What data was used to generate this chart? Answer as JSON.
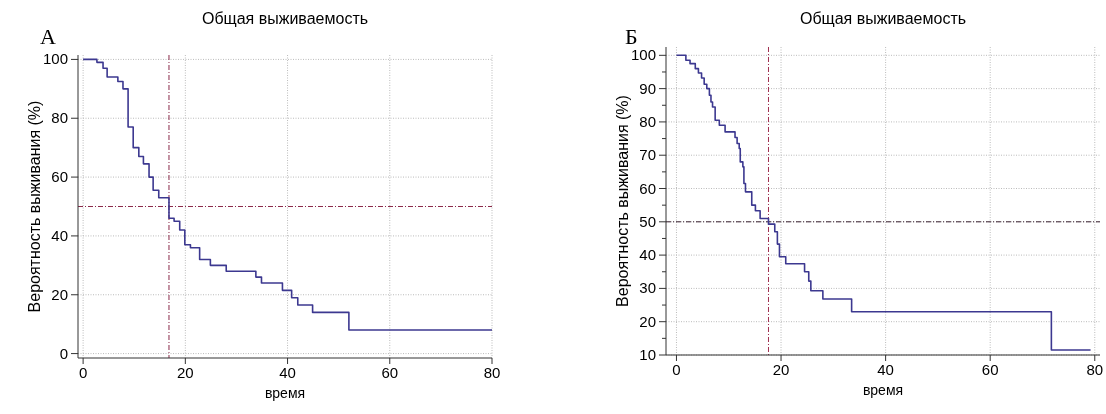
{
  "chart_data": [
    {
      "type": "step",
      "title": "Общая выживаемость",
      "xlabel": "время",
      "ylabel": "Вероятность выживания (%)",
      "annotations": [
        "А"
      ],
      "xlim": [
        -1,
        80
      ],
      "ylim": [
        -1.5,
        101.5
      ],
      "xticks": [
        0,
        20,
        40,
        60,
        80
      ],
      "yticks": [
        0,
        20,
        40,
        60,
        80,
        100
      ],
      "grid": true,
      "line_style": "solid",
      "ref_lines": [
        {
          "axis": "x",
          "value": 16.8,
          "color": "#8b2a4a",
          "line_style": "dashed"
        },
        {
          "axis": "y",
          "value": 50,
          "color": "#8b2a4a",
          "line_style": "dashed"
        }
      ],
      "series": [
        {
          "color": "#3c3890",
          "x": [
            0,
            2.7,
            3.9,
            4.7,
            6.8,
            7.8,
            8.8,
            9.8,
            10.9,
            11.8,
            12.9,
            13.7,
            14.8,
            16.8,
            17.8,
            18.9,
            19.9,
            21,
            22.8,
            24.9,
            28,
            33.8,
            34.9,
            39,
            40.8,
            42,
            44.9,
            52,
            80
          ],
          "values": [
            100,
            99,
            97,
            94,
            92.5,
            90,
            77,
            70,
            67,
            64.5,
            60,
            55.5,
            53,
            46,
            45,
            42,
            37,
            36,
            32,
            30,
            28,
            26,
            24,
            21.5,
            19,
            16.5,
            14,
            8,
            8
          ]
        }
      ]
    },
    {
      "type": "step",
      "title": "Общая выживаемость",
      "xlabel": "время",
      "ylabel": "Вероятность выживания (%)",
      "annotations": [
        "Б"
      ],
      "xlim": [
        -2,
        81
      ],
      "ylim": [
        10,
        102.5
      ],
      "xticks": [
        0,
        20,
        40,
        60,
        80
      ],
      "yticks": [
        10,
        {
          "value": 15,
          "label": null
        },
        20,
        {
          "value": 25,
          "label": null
        },
        30,
        {
          "value": 35,
          "label": null
        },
        40,
        {
          "value": 45,
          "label": null
        },
        50,
        {
          "value": 55,
          "label": null
        },
        60,
        {
          "value": 65,
          "label": null
        },
        70,
        {
          "value": 75,
          "label": null
        },
        80,
        {
          "value": 85,
          "label": null
        },
        90,
        {
          "value": 95,
          "label": null
        },
        100
      ],
      "grid": true,
      "line_style": "solid",
      "ref_lines": [
        {
          "axis": "x",
          "value": 17.6,
          "color": "#a03050",
          "line_style": "dashed"
        },
        {
          "axis": "y",
          "value": 50,
          "color": "#3a2030",
          "line_style": "dashed"
        }
      ],
      "series": [
        {
          "color": "#3c3890",
          "x": [
            0,
            1.8,
            2.6,
            3.6,
            4.2,
            4.8,
            5.3,
            5.8,
            6.3,
            6.6,
            6.9,
            7.4,
            8.2,
            9.3,
            11.2,
            11.6,
            12,
            12.2,
            12.7,
            12.9,
            13.2,
            14.4,
            15.1,
            16,
            17.6,
            18.8,
            19.3,
            19.7,
            20.9,
            24.5,
            25.3,
            25.7,
            28,
            33.5,
            71.7,
            79.2
          ],
          "values": [
            100,
            98.5,
            97.5,
            96,
            94.7,
            93.2,
            91.3,
            90,
            88,
            86,
            84.5,
            80.5,
            79,
            77,
            75.3,
            73.5,
            72,
            68,
            66.5,
            61.5,
            59,
            55,
            53.3,
            51,
            49.3,
            47,
            43.3,
            39.5,
            37.4,
            35,
            32.2,
            29.3,
            26.8,
            23,
            11.5,
            11.5
          ]
        }
      ]
    }
  ]
}
